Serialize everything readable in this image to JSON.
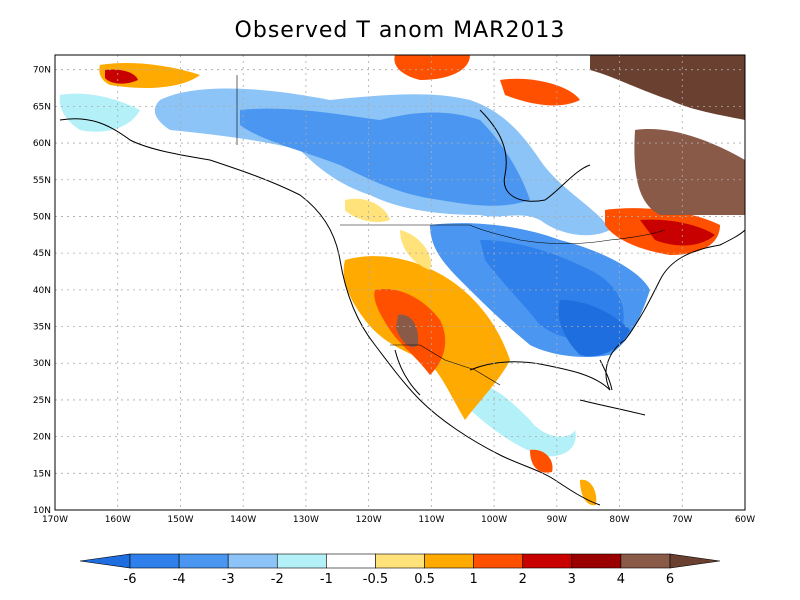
{
  "title": "Observed T anom MAR2013",
  "map": {
    "lon_range": [
      -170,
      -60
    ],
    "lat_range": [
      10,
      72
    ],
    "lon_labels": [
      "170W",
      "160W",
      "150W",
      "140W",
      "130W",
      "120W",
      "110W",
      "100W",
      "90W",
      "80W",
      "70W",
      "60W"
    ],
    "lat_labels": [
      "10N",
      "15N",
      "20N",
      "25N",
      "30N",
      "35N",
      "40N",
      "45N",
      "50N",
      "55N",
      "60N",
      "65N",
      "70N"
    ]
  },
  "colorbar": {
    "labels": [
      "-6",
      "-4",
      "-3",
      "-2",
      "-1",
      "-0.5",
      "0.5",
      "1",
      "2",
      "3",
      "4",
      "6"
    ],
    "colors": [
      "#1f6ee0",
      "#2f80ea",
      "#4a96f0",
      "#8cc4f7",
      "#b4f0f7",
      "#ffffff",
      "#ffe27a",
      "#ffaa00",
      "#ff5000",
      "#c80000",
      "#9a0000",
      "#8a5a48",
      "#6a4030"
    ]
  },
  "colors": {
    "coast": "#000000",
    "grid": "#aaaaaa"
  }
}
